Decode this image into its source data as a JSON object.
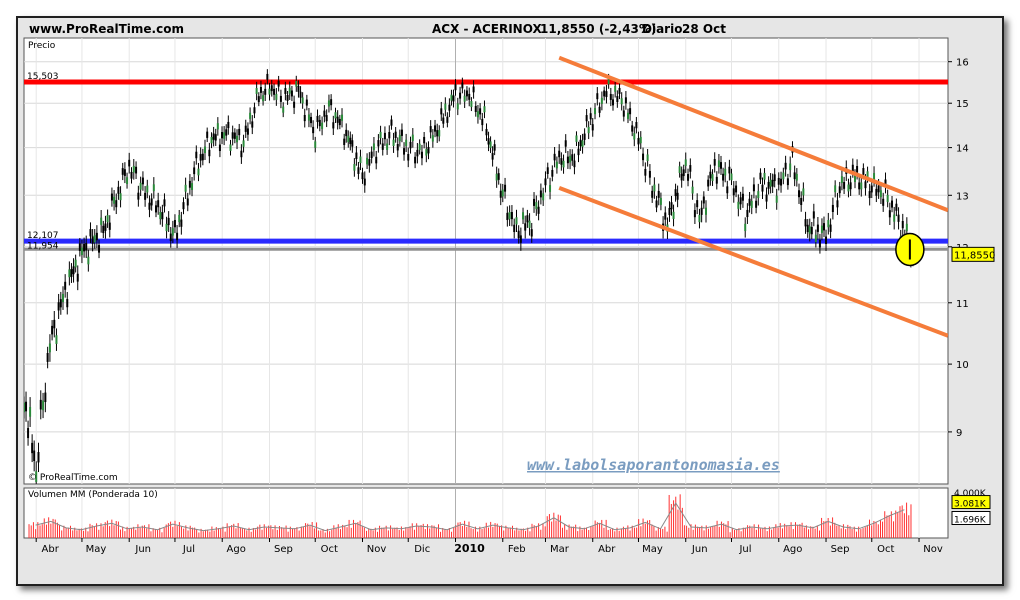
{
  "header": {
    "site": "www.ProRealTime.com",
    "title": "ACX - ACERINOX",
    "quote": "11,8550 (-2,43%)",
    "period": "Diario",
    "date": "28 Oct"
  },
  "watermark": "www.labolsaporantonomasia.es",
  "copyright": "© ProRealTime.com",
  "price_panel_label": "Precio",
  "volume_panel_label": "Volumen MM (Ponderada 10)",
  "colors": {
    "resistance": "#ff0000",
    "support": "#2a2aff",
    "close_line": "#909090",
    "channel": "#f57c3a",
    "highlight": "#ffff00",
    "candles": "#000000",
    "volume_bars": "#ff3030",
    "volume_ma": "#8a8a8a"
  },
  "chart_data": [
    {
      "type": "line",
      "title": "ACX - ACERINOX",
      "ylabel": "Precio",
      "y_scale": "log",
      "ylim": [
        8.3,
        16.6
      ],
      "y_ticks": [
        9,
        10,
        11,
        12,
        13,
        14,
        15,
        16
      ],
      "x_ticks": [
        "Abr",
        "May",
        "Jun",
        "Jul",
        "Ago",
        "Sep",
        "Oct",
        "Nov",
        "Dic",
        "2010",
        "Feb",
        "Mar",
        "Abr",
        "May",
        "Jun",
        "Jul",
        "Ago",
        "Sep",
        "Oct",
        "Nov"
      ],
      "x_range": [
        "2009-03-24",
        "2010-11-20"
      ],
      "last_price": "11,8550",
      "levels": [
        {
          "label": "15,503",
          "value": 15.503,
          "color": "red"
        },
        {
          "label": "12,107",
          "value": 12.107,
          "color": "blue"
        },
        {
          "label": "11,954",
          "value": 11.954,
          "color": "grey"
        }
      ],
      "channel_lines": [
        {
          "from": {
            "x": "2010-03-10",
            "y": 16.1
          },
          "to": {
            "x": "2010-11-20",
            "y": 12.7
          }
        },
        {
          "from": {
            "x": "2010-03-10",
            "y": 13.15
          },
          "to": {
            "x": "2010-11-20",
            "y": 10.45
          }
        }
      ],
      "highlight": {
        "x": "2010-10-26",
        "y": 11.95
      },
      "series": [
        {
          "x": [
            "2009-03-24",
            "2009-04-01",
            "2009-04-10",
            "2009-04-20",
            "2009-05-01",
            "2009-05-15",
            "2009-06-01",
            "2009-06-10",
            "2009-06-20",
            "2009-07-01",
            "2009-07-15",
            "2009-07-25",
            "2009-08-05",
            "2009-08-15",
            "2009-08-25",
            "2009-09-01",
            "2009-09-10",
            "2009-09-20",
            "2009-10-01",
            "2009-10-10",
            "2009-10-20",
            "2009-11-01",
            "2009-11-10",
            "2009-11-20",
            "2009-12-01",
            "2009-12-10",
            "2009-12-20",
            "2010-01-01",
            "2010-01-10",
            "2010-01-20",
            "2010-02-01",
            "2010-02-10",
            "2010-02-20",
            "2010-03-01",
            "2010-03-10",
            "2010-03-20",
            "2010-04-01",
            "2010-04-10",
            "2010-04-20",
            "2010-05-01",
            "2010-05-10",
            "2010-05-20",
            "2010-06-01",
            "2010-06-10",
            "2010-06-20",
            "2010-07-01",
            "2010-07-10",
            "2010-07-20",
            "2010-08-01",
            "2010-08-10",
            "2010-08-20",
            "2010-09-01",
            "2010-09-10",
            "2010-09-20",
            "2010-10-01",
            "2010-10-10",
            "2010-10-20",
            "2010-10-28"
          ],
          "values": [
            9.5,
            8.5,
            10.3,
            11.2,
            11.9,
            12.3,
            13.6,
            13.1,
            12.8,
            12.2,
            13.6,
            14.2,
            14.3,
            14.1,
            15.2,
            15.4,
            15.1,
            15.3,
            14.3,
            14.9,
            14.4,
            13.4,
            14.0,
            14.3,
            14.0,
            13.9,
            14.4,
            15.2,
            15.2,
            14.6,
            13.0,
            12.3,
            12.5,
            13.2,
            13.8,
            13.8,
            14.7,
            15.3,
            15.1,
            14.2,
            13.2,
            12.4,
            13.7,
            12.5,
            13.6,
            13.3,
            12.6,
            13.2,
            13.2,
            13.7,
            12.4,
            12.2,
            13.2,
            13.4,
            13.2,
            13.0,
            12.4,
            11.86
          ]
        }
      ]
    },
    {
      "type": "bar",
      "title": "Volumen MM (Ponderada 10)",
      "y_ticks": [
        "4.000K",
        "3.081K",
        "1.696K"
      ],
      "x_range": [
        "2009-03-24",
        "2010-11-20"
      ],
      "values_K": [
        1400,
        1800,
        1100,
        900,
        1300,
        1600,
        1000,
        1200,
        900,
        1500,
        1100,
        800,
        1000,
        1300,
        900,
        1200,
        1100,
        1000,
        1400,
        800,
        1200,
        1600,
        900,
        1100,
        1000,
        1300,
        1200,
        900,
        1500,
        1000,
        1400,
        1100,
        900,
        1300,
        2200,
        1200,
        1000,
        1600,
        900,
        1100,
        1700,
        1000,
        3800,
        1200,
        1100,
        1500,
        900,
        1200,
        1000,
        1300,
        1400,
        1100,
        1800,
        1200,
        1000,
        1600,
        2400,
        3081
      ]
    }
  ]
}
